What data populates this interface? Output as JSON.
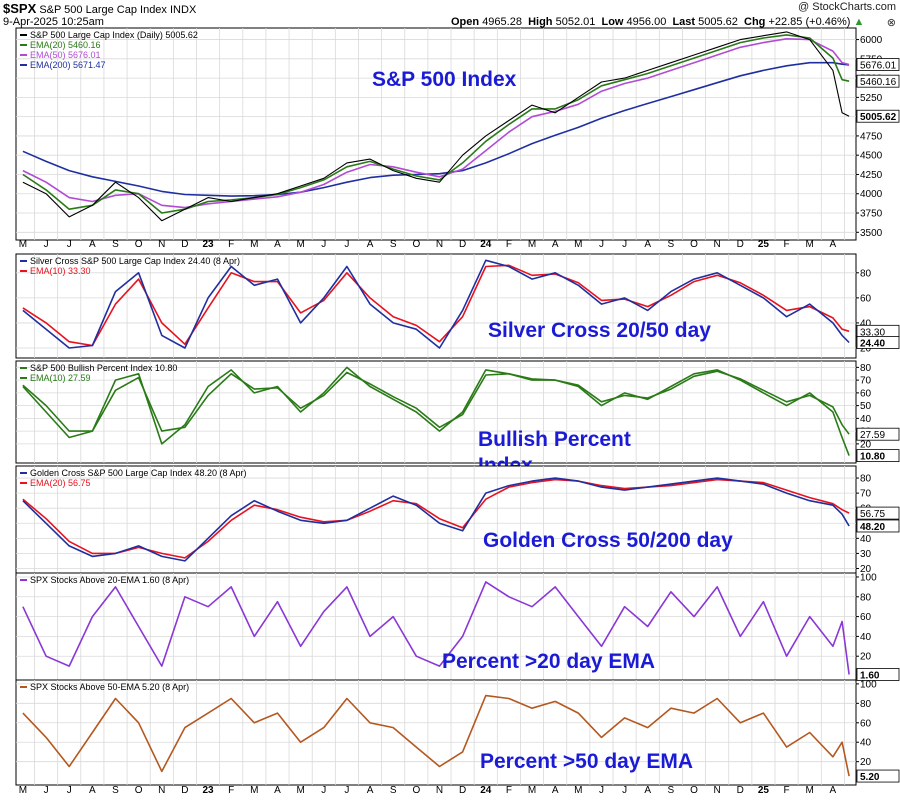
{
  "header": {
    "symbol": "$SPX",
    "name": "S&P 500 Large Cap Index",
    "exchange": "INDX",
    "date": "9-Apr-2025 10:25am",
    "watermark": "@ StockCharts.com",
    "open_label": "Open",
    "open": "4965.28",
    "high_label": "High",
    "high": "5052.01",
    "low_label": "Low",
    "low": "4956.00",
    "last_label": "Last",
    "last": "5005.62",
    "chg_label": "Chg",
    "chg": "+22.85 (+0.46%)",
    "chg_glyph": "▲",
    "close_glyph": "⊗"
  },
  "colors": {
    "blue": "#1f2fa0",
    "red": "#e8121f",
    "green": "#2a7a18",
    "purple": "#8a37d6",
    "brown": "#b45820",
    "annot": "#1b1bd6",
    "grid": "#d9d9d9",
    "price": "#000000",
    "ema50": "#b14bd6",
    "ema200": "#1f2fa0"
  },
  "x_axis_labels": [
    "M",
    "J",
    "J",
    "A",
    "S",
    "O",
    "N",
    "D",
    "23",
    "F",
    "M",
    "A",
    "M",
    "J",
    "J",
    "A",
    "S",
    "O",
    "N",
    "D",
    "24",
    "F",
    "M",
    "A",
    "M",
    "J",
    "J",
    "A",
    "S",
    "O",
    "N",
    "D",
    "25",
    "F",
    "M",
    "A"
  ],
  "chart_data": [
    {
      "type": "line",
      "panel": "price",
      "annotation": "S&P 500 Index",
      "legend": [
        {
          "label": "S&P 500 Large Cap Index (Daily) 5005.62",
          "color": "#000000"
        },
        {
          "label": "EMA(20) 5460.16",
          "color": "#2a7a18"
        },
        {
          "label": "EMA(50) 5676.01",
          "color": "#b14bd6"
        },
        {
          "label": "EMA(200) 5671.47",
          "color": "#1f2fa0"
        }
      ],
      "y_ticks": [
        "6000",
        "5750",
        "5500",
        "5250",
        "5000",
        "4750",
        "4500",
        "4250",
        "4000",
        "3750",
        "3500"
      ],
      "ylim": [
        3400,
        6150
      ],
      "value_tags": [
        {
          "text": "5676.01",
          "value": 5676.01,
          "bg": "#ffffff",
          "fg": "#000000"
        },
        {
          "text": "5460.16",
          "value": 5460.16,
          "bg": "#ffffff",
          "fg": "#000000"
        },
        {
          "text": "5005.62",
          "value": 5005.62,
          "bg": "#ffffff",
          "fg": "#000000"
        }
      ],
      "x": [
        0,
        1,
        2,
        3,
        4,
        5,
        6,
        7,
        8,
        9,
        10,
        11,
        12,
        13,
        14,
        15,
        16,
        17,
        18,
        19,
        20,
        21,
        22,
        23,
        24,
        25,
        26,
        27,
        28,
        29,
        30,
        31,
        32,
        33,
        34,
        35,
        35.4,
        35.7
      ],
      "series": [
        {
          "name": "S&P 500 Large Cap Index",
          "color": "#000000",
          "values": [
            4150,
            4000,
            3700,
            3850,
            4150,
            3950,
            3650,
            3800,
            3950,
            3900,
            3950,
            4000,
            4100,
            4200,
            4400,
            4450,
            4300,
            4200,
            4150,
            4500,
            4750,
            4950,
            5150,
            5050,
            5250,
            5450,
            5500,
            5600,
            5700,
            5800,
            5900,
            6000,
            6050,
            6100,
            6000,
            5600,
            5050,
            5005
          ]
        },
        {
          "name": "EMA(20)",
          "color": "#2a7a18",
          "values": [
            4250,
            4050,
            3800,
            3850,
            4050,
            4000,
            3750,
            3800,
            3900,
            3920,
            3950,
            3990,
            4080,
            4180,
            4350,
            4420,
            4320,
            4230,
            4180,
            4400,
            4680,
            4900,
            5100,
            5100,
            5220,
            5400,
            5480,
            5560,
            5660,
            5760,
            5860,
            5960,
            6020,
            6060,
            6020,
            5760,
            5480,
            5460
          ]
        },
        {
          "name": "EMA(50)",
          "color": "#b14bd6",
          "values": [
            4300,
            4150,
            3950,
            3900,
            3980,
            4000,
            3850,
            3820,
            3870,
            3900,
            3930,
            3960,
            4020,
            4120,
            4280,
            4380,
            4350,
            4280,
            4220,
            4320,
            4560,
            4800,
            5000,
            5070,
            5160,
            5330,
            5430,
            5500,
            5600,
            5700,
            5800,
            5900,
            5960,
            6010,
            6000,
            5850,
            5700,
            5676
          ]
        },
        {
          "name": "EMA(200)",
          "color": "#1f2fa0",
          "values": [
            4550,
            4420,
            4300,
            4220,
            4160,
            4100,
            4030,
            3990,
            3980,
            3970,
            3975,
            3990,
            4020,
            4080,
            4150,
            4210,
            4240,
            4250,
            4260,
            4300,
            4400,
            4520,
            4650,
            4760,
            4860,
            4980,
            5080,
            5170,
            5260,
            5350,
            5440,
            5530,
            5600,
            5660,
            5700,
            5700,
            5680,
            5671
          ]
        }
      ]
    },
    {
      "type": "line",
      "panel": "silver-cross",
      "annotation": "Silver Cross 20/50 day",
      "legend": [
        {
          "label": "Silver Cross S&P 500 Large Cap Index 24.40 (8 Apr)",
          "color": "#1f2fa0"
        },
        {
          "label": "EMA(10) 33.30",
          "color": "#e8121f"
        }
      ],
      "y_ticks": [
        "80",
        "60",
        "40",
        "20"
      ],
      "ylim": [
        12,
        95
      ],
      "value_tags": [
        {
          "text": "33.30",
          "value": 33.3,
          "bg": "#ffffff",
          "fg": "#000000"
        },
        {
          "text": "24.40",
          "value": 24.4,
          "bg": "#ffffff",
          "fg": "#000000"
        }
      ],
      "x": [
        0,
        1,
        2,
        3,
        4,
        5,
        6,
        7,
        8,
        9,
        10,
        11,
        12,
        13,
        14,
        15,
        16,
        17,
        18,
        19,
        20,
        21,
        22,
        23,
        24,
        25,
        26,
        27,
        28,
        29,
        30,
        31,
        32,
        33,
        34,
        35,
        35.4,
        35.7
      ],
      "series": [
        {
          "name": "Silver Cross S&P 500 Large Cap Index",
          "color": "#1f2fa0",
          "values": [
            50,
            35,
            20,
            22,
            65,
            80,
            30,
            20,
            60,
            85,
            70,
            75,
            40,
            60,
            85,
            55,
            40,
            35,
            20,
            50,
            90,
            85,
            75,
            80,
            70,
            55,
            60,
            50,
            65,
            75,
            80,
            70,
            60,
            45,
            55,
            40,
            30,
            24.4
          ]
        },
        {
          "name": "EMA(10)",
          "color": "#e8121f",
          "values": [
            52,
            40,
            25,
            22,
            55,
            75,
            40,
            23,
            52,
            80,
            73,
            73,
            48,
            58,
            80,
            60,
            45,
            38,
            25,
            45,
            85,
            86,
            78,
            79,
            72,
            58,
            59,
            53,
            62,
            73,
            78,
            72,
            62,
            50,
            53,
            44,
            35,
            33.3
          ]
        }
      ]
    },
    {
      "type": "line",
      "panel": "bullish-percent",
      "annotation": "Bullish Percent Index",
      "legend": [
        {
          "label": "S&P 500 Bullish Percent Index 10.80",
          "color": "#2a7a18"
        },
        {
          "label": "EMA(10) 27.59",
          "color": "#2a7a18"
        }
      ],
      "y_ticks": [
        "80",
        "70",
        "60",
        "50",
        "40",
        "30",
        "20"
      ],
      "ylim": [
        5,
        85
      ],
      "value_tags": [
        {
          "text": "27.59",
          "value": 27.59,
          "bg": "#ffffff",
          "fg": "#000000"
        },
        {
          "text": "10.80",
          "value": 10.8,
          "bg": "#ffffff",
          "fg": "#000000"
        }
      ],
      "x": [
        0,
        1,
        2,
        3,
        4,
        5,
        6,
        7,
        8,
        9,
        10,
        11,
        12,
        13,
        14,
        15,
        16,
        17,
        18,
        19,
        20,
        21,
        22,
        23,
        24,
        25,
        26,
        27,
        28,
        29,
        30,
        31,
        32,
        33,
        34,
        35,
        35.4,
        35.7
      ],
      "series": [
        {
          "name": "S&P 500 Bullish Percent Index",
          "color": "#2a7a18",
          "values": [
            65,
            45,
            25,
            30,
            70,
            75,
            20,
            35,
            65,
            78,
            60,
            65,
            45,
            60,
            80,
            65,
            55,
            45,
            30,
            45,
            78,
            75,
            70,
            70,
            65,
            50,
            60,
            55,
            65,
            75,
            78,
            70,
            60,
            50,
            60,
            45,
            25,
            10.8
          ]
        },
        {
          "name": "EMA(10)",
          "color": "#2a7a18",
          "values": [
            66,
            50,
            30,
            30,
            62,
            72,
            30,
            33,
            58,
            75,
            63,
            64,
            48,
            58,
            76,
            67,
            57,
            48,
            33,
            43,
            74,
            75,
            71,
            70,
            66,
            53,
            58,
            56,
            63,
            73,
            77,
            71,
            62,
            53,
            58,
            49,
            35,
            27.59
          ]
        }
      ]
    },
    {
      "type": "line",
      "panel": "golden-cross",
      "annotation": "Golden Cross 50/200 day",
      "legend": [
        {
          "label": "Golden Cross S&P 500 Large Cap Index 48.20 (8 Apr)",
          "color": "#1f2fa0"
        },
        {
          "label": "EMA(20) 56.75",
          "color": "#e8121f"
        }
      ],
      "y_ticks": [
        "80",
        "70",
        "60",
        "50",
        "40",
        "30",
        "20"
      ],
      "ylim": [
        17,
        88
      ],
      "value_tags": [
        {
          "text": "56.75",
          "value": 56.75,
          "bg": "#ffffff",
          "fg": "#000000"
        },
        {
          "text": "48.20",
          "value": 48.2,
          "bg": "#ffffff",
          "fg": "#000000"
        }
      ],
      "x": [
        0,
        1,
        2,
        3,
        4,
        5,
        6,
        7,
        8,
        9,
        10,
        11,
        12,
        13,
        14,
        15,
        16,
        17,
        18,
        19,
        20,
        21,
        22,
        23,
        24,
        25,
        26,
        27,
        28,
        29,
        30,
        31,
        32,
        33,
        34,
        35,
        35.4,
        35.7
      ],
      "series": [
        {
          "name": "Golden Cross S&P 500 Large Cap Index",
          "color": "#1f2fa0",
          "values": [
            65,
            50,
            35,
            28,
            30,
            35,
            28,
            25,
            40,
            55,
            65,
            58,
            52,
            50,
            52,
            60,
            68,
            62,
            50,
            45,
            70,
            75,
            78,
            80,
            78,
            74,
            72,
            74,
            76,
            78,
            80,
            78,
            76,
            70,
            65,
            62,
            56,
            48.2
          ]
        },
        {
          "name": "EMA(20)",
          "color": "#e8121f",
          "values": [
            66,
            53,
            38,
            30,
            30,
            34,
            30,
            27,
            38,
            52,
            62,
            59,
            54,
            51,
            52,
            58,
            65,
            63,
            53,
            47,
            66,
            74,
            77,
            79,
            78,
            75,
            73,
            74,
            75,
            77,
            79,
            78,
            77,
            72,
            67,
            63,
            59,
            56.75
          ]
        }
      ]
    },
    {
      "type": "line",
      "panel": "above-20ema",
      "annotation": "Percent >20 day EMA",
      "legend": [
        {
          "label": "SPX Stocks Above 20-EMA 1.60 (8 Apr)",
          "color": "#8a37d6"
        }
      ],
      "y_ticks": [
        "100",
        "80",
        "60",
        "40",
        "20"
      ],
      "ylim": [
        -4,
        104
      ],
      "value_tags": [
        {
          "text": "1.60",
          "value": 1.6,
          "bg": "#ffffff",
          "fg": "#000000"
        }
      ],
      "x": [
        0,
        1,
        2,
        3,
        4,
        5,
        6,
        7,
        8,
        9,
        10,
        11,
        12,
        13,
        14,
        15,
        16,
        17,
        18,
        19,
        20,
        21,
        22,
        23,
        24,
        25,
        26,
        27,
        28,
        29,
        30,
        31,
        32,
        33,
        34,
        35,
        35.4,
        35.7
      ],
      "series": [
        {
          "name": "SPX Stocks Above 20-EMA",
          "color": "#8a37d6",
          "values": [
            70,
            20,
            10,
            60,
            90,
            50,
            10,
            80,
            70,
            90,
            40,
            75,
            30,
            65,
            90,
            40,
            60,
            20,
            10,
            40,
            95,
            80,
            70,
            90,
            60,
            30,
            70,
            50,
            85,
            60,
            90,
            40,
            75,
            20,
            60,
            30,
            55,
            1.6
          ]
        }
      ]
    },
    {
      "type": "line",
      "panel": "above-50ema",
      "annotation": "Percent >50 day EMA",
      "legend": [
        {
          "label": "SPX Stocks Above 50-EMA 5.20 (8 Apr)",
          "color": "#b45820"
        }
      ],
      "y_ticks": [
        "100",
        "80",
        "60",
        "40",
        "20"
      ],
      "ylim": [
        -4,
        104
      ],
      "value_tags": [
        {
          "text": "5.20",
          "value": 5.2,
          "bg": "#ffffff",
          "fg": "#000000"
        }
      ],
      "x": [
        0,
        1,
        2,
        3,
        4,
        5,
        6,
        7,
        8,
        9,
        10,
        11,
        12,
        13,
        14,
        15,
        16,
        17,
        18,
        19,
        20,
        21,
        22,
        23,
        24,
        25,
        26,
        27,
        28,
        29,
        30,
        31,
        32,
        33,
        34,
        35,
        35.4,
        35.7
      ],
      "series": [
        {
          "name": "SPX Stocks Above 50-EMA",
          "color": "#b45820",
          "values": [
            70,
            45,
            15,
            50,
            85,
            60,
            10,
            55,
            70,
            85,
            60,
            70,
            40,
            55,
            85,
            60,
            55,
            35,
            15,
            30,
            88,
            85,
            75,
            82,
            70,
            45,
            65,
            55,
            75,
            70,
            85,
            60,
            70,
            35,
            50,
            25,
            40,
            5.2
          ]
        }
      ]
    }
  ]
}
